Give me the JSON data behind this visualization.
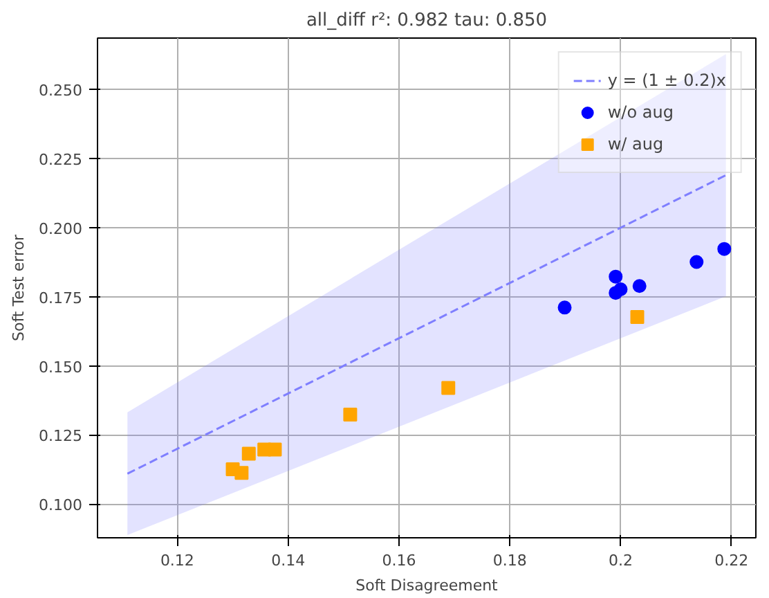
{
  "chart_data": {
    "type": "scatter",
    "title": "all_diff r²: 0.982 tau: 0.850",
    "xlabel": "Soft Disagreement",
    "ylabel": "Soft Test error",
    "xlim": [
      0.1056,
      0.2244
    ],
    "ylim": [
      0.0878,
      0.2686
    ],
    "xticks": [
      0.12,
      0.14,
      0.16,
      0.18,
      0.2,
      0.22
    ],
    "yticks": [
      {
        "value": 0.1,
        "label": "0.100"
      },
      {
        "value": 0.125,
        "label": "0.125"
      },
      {
        "value": 0.15,
        "label": "0.150"
      },
      {
        "value": 0.175,
        "label": "0.175"
      },
      {
        "value": 0.2,
        "label": "0.200"
      },
      {
        "value": 0.225,
        "label": "0.225"
      },
      {
        "value": 0.25,
        "label": "0.250"
      }
    ],
    "grid": true,
    "legend": "top right",
    "series": [
      {
        "name": "y = (1 ± 0.2)x",
        "type": "line",
        "line_style": "dashed",
        "color": "#7f7fff",
        "x": [
          0.111,
          0.219
        ],
        "values": [
          0.111,
          0.219
        ],
        "lower": [
          0.0888,
          0.1752
        ],
        "upper": [
          0.1332,
          0.2628
        ]
      },
      {
        "name": "w/o aug",
        "marker": "circle",
        "color": "#0000ff",
        "x": [
          0.1899,
          0.1991,
          0.1991,
          0.2,
          0.2034,
          0.2137,
          0.2187
        ],
        "values": [
          0.1711,
          0.1823,
          0.1764,
          0.1777,
          0.1789,
          0.1876,
          0.1923
        ]
      },
      {
        "name": "w/ aug",
        "marker": "square",
        "color": "#ffa500",
        "x": [
          0.203,
          0.1689,
          0.1512,
          0.1329,
          0.1357,
          0.1376,
          0.13,
          0.1316
        ],
        "values": [
          0.1677,
          0.142,
          0.1324,
          0.1182,
          0.1197,
          0.1197,
          0.1126,
          0.1113
        ]
      }
    ]
  }
}
